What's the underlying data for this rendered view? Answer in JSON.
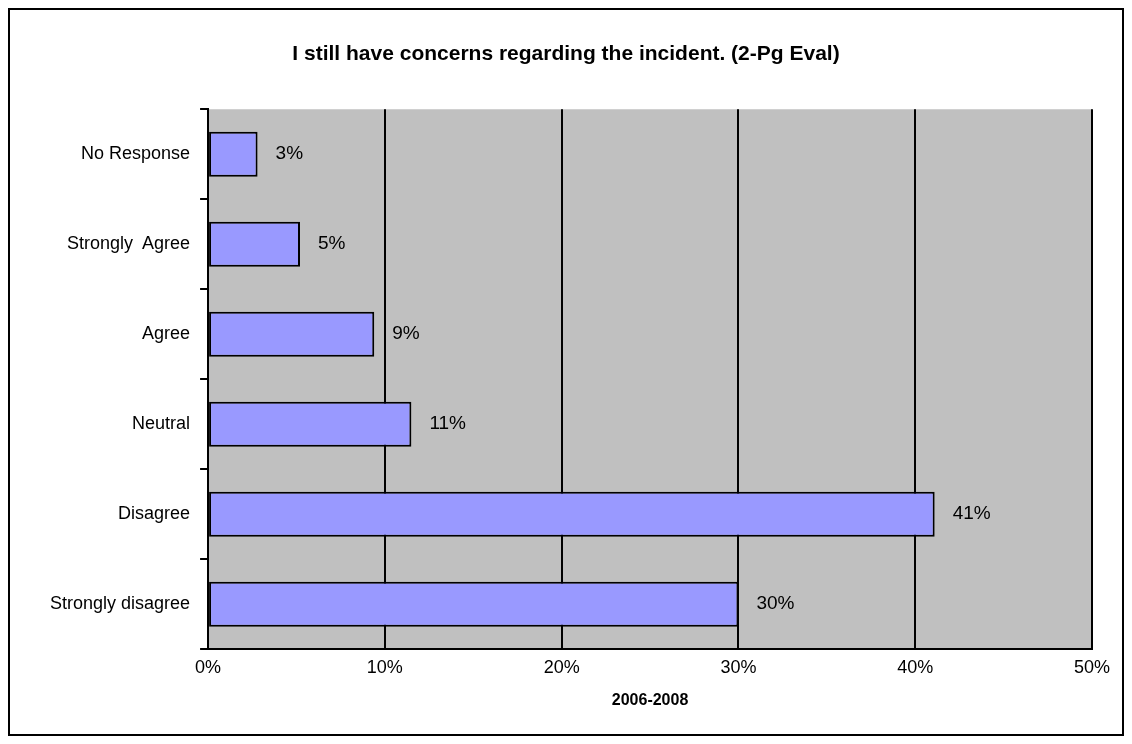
{
  "chart_data": {
    "type": "bar",
    "orientation": "horizontal",
    "title": "I still have concerns regarding the incident. (2-Pg Eval)",
    "xlabel": "2006-2008",
    "categories": [
      "No Response",
      "Strongly  Agree",
      "Agree",
      "Neutral",
      "Disagree",
      "Strongly disagree"
    ],
    "values": [
      2.8,
      5.2,
      9.4,
      11.5,
      41.1,
      30
    ],
    "value_labels": [
      "3%",
      "5%",
      "9%",
      "11%",
      "41%",
      "30%"
    ],
    "color": "#9999ff",
    "xlim": [
      0,
      50
    ],
    "xticks": [
      {
        "value": 0,
        "label": "0%"
      },
      {
        "value": 10,
        "label": "10%"
      },
      {
        "value": 20,
        "label": "20%"
      },
      {
        "value": 30,
        "label": "30%"
      },
      {
        "value": 40,
        "label": "40%"
      },
      {
        "value": 50,
        "label": "50%"
      }
    ],
    "grid": "x",
    "legend": false
  }
}
